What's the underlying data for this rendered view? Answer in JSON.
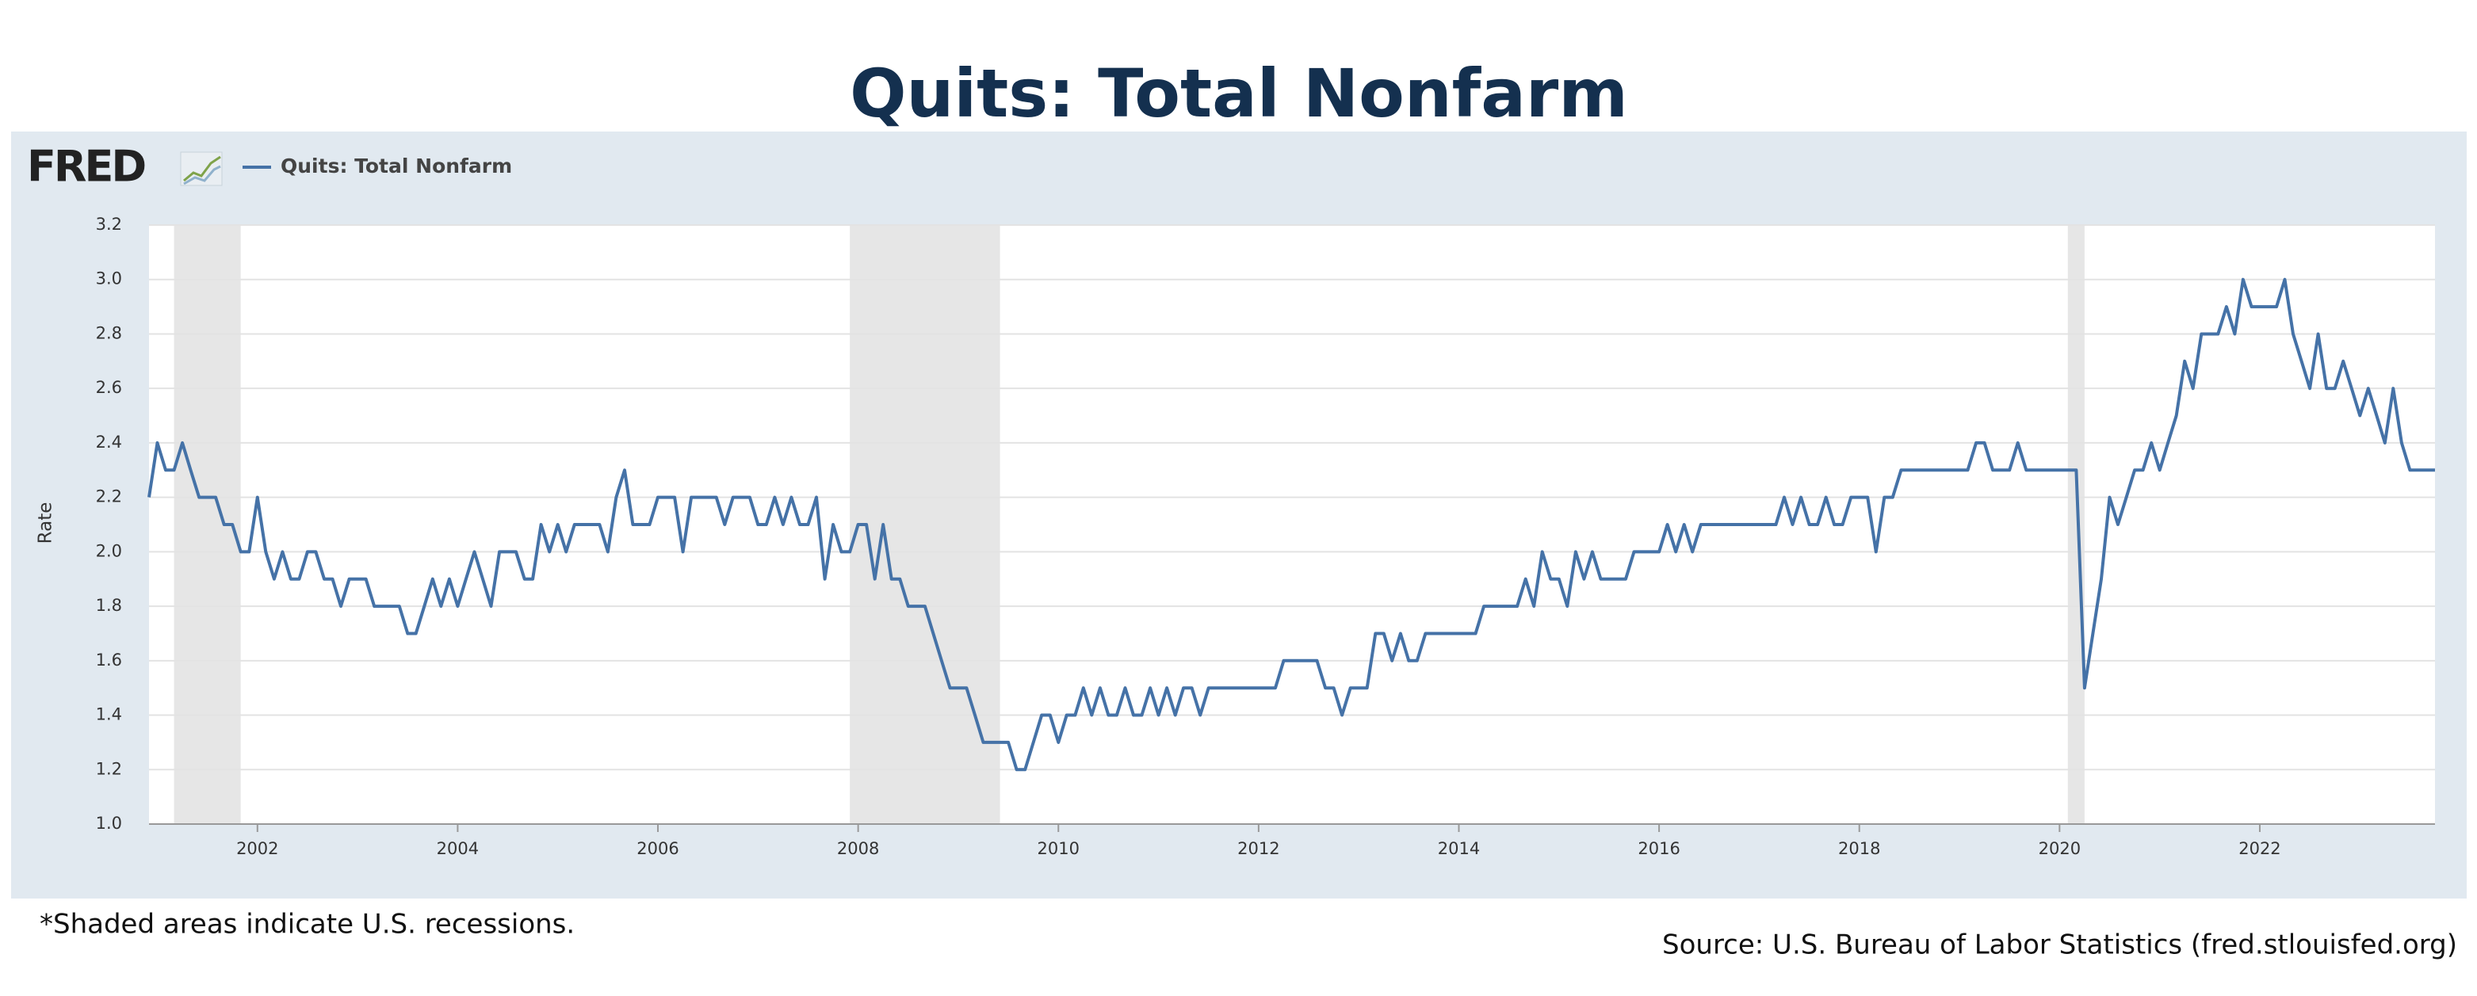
{
  "chart_data": {
    "type": "line",
    "title": "Quits: Total Nonfarm",
    "logo": "FRED",
    "ylabel": "Rate",
    "footnote": "*Shaded areas indicate U.S. recessions.",
    "source": "Source: U.S. Bureau of Labor Statistics (fred.stlouisfed.org)",
    "legend": "top-left",
    "grid": true,
    "xlim": [
      2000.917,
      2023.75
    ],
    "xticks": [
      2002,
      2004,
      2006,
      2008,
      2010,
      2012,
      2014,
      2016,
      2018,
      2020,
      2022
    ],
    "ylim": [
      1,
      3.2
    ],
    "yticks": [
      {
        "value": 1,
        "label": "1.0"
      },
      1.2,
      1.4,
      1.6,
      1.8,
      {
        "value": 2,
        "label": "2.0"
      },
      2.2,
      2.4,
      2.6,
      2.8,
      {
        "value": 3,
        "label": "3.0"
      },
      3.2
    ],
    "recessions": [
      [
        2001.167,
        2001.833
      ],
      [
        2007.917,
        2009.417
      ],
      [
        2020.083,
        2020.25
      ]
    ],
    "recession_color": "#e6e6e6",
    "series": [
      {
        "name": "Quits: Total Nonfarm",
        "color": "#4572a7",
        "x": [
          2000.917,
          2001.0,
          2001.083,
          2001.167,
          2001.25,
          2001.333,
          2001.417,
          2001.5,
          2001.583,
          2001.667,
          2001.75,
          2001.833,
          2001.917,
          2002.0,
          2002.083,
          2002.167,
          2002.25,
          2002.333,
          2002.417,
          2002.5,
          2002.583,
          2002.667,
          2002.75,
          2002.833,
          2002.917,
          2003.0,
          2003.083,
          2003.167,
          2003.25,
          2003.333,
          2003.417,
          2003.5,
          2003.583,
          2003.667,
          2003.75,
          2003.833,
          2003.917,
          2004.0,
          2004.083,
          2004.167,
          2004.25,
          2004.333,
          2004.417,
          2004.5,
          2004.583,
          2004.667,
          2004.75,
          2004.833,
          2004.917,
          2005.0,
          2005.083,
          2005.167,
          2005.25,
          2005.333,
          2005.417,
          2005.5,
          2005.583,
          2005.667,
          2005.75,
          2005.833,
          2005.917,
          2006.0,
          2006.083,
          2006.167,
          2006.25,
          2006.333,
          2006.417,
          2006.5,
          2006.583,
          2006.667,
          2006.75,
          2006.833,
          2006.917,
          2007.0,
          2007.083,
          2007.167,
          2007.25,
          2007.333,
          2007.417,
          2007.5,
          2007.583,
          2007.667,
          2007.75,
          2007.833,
          2007.917,
          2008.0,
          2008.083,
          2008.167,
          2008.25,
          2008.333,
          2008.417,
          2008.5,
          2008.583,
          2008.667,
          2008.75,
          2008.833,
          2008.917,
          2009.0,
          2009.083,
          2009.167,
          2009.25,
          2009.333,
          2009.417,
          2009.5,
          2009.583,
          2009.667,
          2009.75,
          2009.833,
          2009.917,
          2010.0,
          2010.083,
          2010.167,
          2010.25,
          2010.333,
          2010.417,
          2010.5,
          2010.583,
          2010.667,
          2010.75,
          2010.833,
          2010.917,
          2011.0,
          2011.083,
          2011.167,
          2011.25,
          2011.333,
          2011.417,
          2011.5,
          2011.583,
          2011.667,
          2011.75,
          2011.833,
          2011.917,
          2012.0,
          2012.083,
          2012.167,
          2012.25,
          2012.333,
          2012.417,
          2012.5,
          2012.583,
          2012.667,
          2012.75,
          2012.833,
          2012.917,
          2013.0,
          2013.083,
          2013.167,
          2013.25,
          2013.333,
          2013.417,
          2013.5,
          2013.583,
          2013.667,
          2013.75,
          2013.833,
          2013.917,
          2014.0,
          2014.083,
          2014.167,
          2014.25,
          2014.333,
          2014.417,
          2014.5,
          2014.583,
          2014.667,
          2014.75,
          2014.833,
          2014.917,
          2015.0,
          2015.083,
          2015.167,
          2015.25,
          2015.333,
          2015.417,
          2015.5,
          2015.583,
          2015.667,
          2015.75,
          2015.833,
          2015.917,
          2016.0,
          2016.083,
          2016.167,
          2016.25,
          2016.333,
          2016.417,
          2016.5,
          2016.583,
          2016.667,
          2016.75,
          2016.833,
          2016.917,
          2017.0,
          2017.083,
          2017.167,
          2017.25,
          2017.333,
          2017.417,
          2017.5,
          2017.583,
          2017.667,
          2017.75,
          2017.833,
          2017.917,
          2018.0,
          2018.083,
          2018.167,
          2018.25,
          2018.333,
          2018.417,
          2018.5,
          2018.583,
          2018.667,
          2018.75,
          2018.833,
          2018.917,
          2019.0,
          2019.083,
          2019.167,
          2019.25,
          2019.333,
          2019.417,
          2019.5,
          2019.583,
          2019.667,
          2019.75,
          2019.833,
          2019.917,
          2020.0,
          2020.083,
          2020.167,
          2020.25,
          2020.333,
          2020.417,
          2020.5,
          2020.583,
          2020.667,
          2020.75,
          2020.833,
          2020.917,
          2021.0,
          2021.083,
          2021.167,
          2021.25,
          2021.333,
          2021.417,
          2021.5,
          2021.583,
          2021.667,
          2021.75,
          2021.833,
          2021.917,
          2022.0,
          2022.083,
          2022.167,
          2022.25,
          2022.333,
          2022.417,
          2022.5,
          2022.583,
          2022.667,
          2022.75,
          2022.833,
          2022.917,
          2023.0,
          2023.083,
          2023.167,
          2023.25,
          2023.333,
          2023.417,
          2023.5,
          2023.583,
          2023.667,
          2023.75
        ],
        "values": [
          2.2,
          2.4,
          2.3,
          2.3,
          2.4,
          2.3,
          2.2,
          2.2,
          2.2,
          2.1,
          2.1,
          2.0,
          2.0,
          2.2,
          2.0,
          1.9,
          2.0,
          1.9,
          1.9,
          2.0,
          2.0,
          1.9,
          1.9,
          1.8,
          1.9,
          1.9,
          1.9,
          1.8,
          1.8,
          1.8,
          1.8,
          1.7,
          1.7,
          1.8,
          1.9,
          1.8,
          1.9,
          1.8,
          1.9,
          2.0,
          1.9,
          1.8,
          2.0,
          2.0,
          2.0,
          1.9,
          1.9,
          2.1,
          2.0,
          2.1,
          2.0,
          2.1,
          2.1,
          2.1,
          2.1,
          2.0,
          2.2,
          2.3,
          2.1,
          2.1,
          2.1,
          2.2,
          2.2,
          2.2,
          2.0,
          2.2,
          2.2,
          2.2,
          2.2,
          2.1,
          2.2,
          2.2,
          2.2,
          2.1,
          2.1,
          2.2,
          2.1,
          2.2,
          2.1,
          2.1,
          2.2,
          1.9,
          2.1,
          2.0,
          2.0,
          2.1,
          2.1,
          1.9,
          2.1,
          1.9,
          1.9,
          1.8,
          1.8,
          1.8,
          1.7,
          1.6,
          1.5,
          1.5,
          1.5,
          1.4,
          1.3,
          1.3,
          1.3,
          1.3,
          1.2,
          1.2,
          1.3,
          1.4,
          1.4,
          1.3,
          1.4,
          1.4,
          1.5,
          1.4,
          1.5,
          1.4,
          1.4,
          1.5,
          1.4,
          1.4,
          1.5,
          1.4,
          1.5,
          1.4,
          1.5,
          1.5,
          1.4,
          1.5,
          1.5,
          1.5,
          1.5,
          1.5,
          1.5,
          1.5,
          1.5,
          1.5,
          1.6,
          1.6,
          1.6,
          1.6,
          1.6,
          1.5,
          1.5,
          1.4,
          1.5,
          1.5,
          1.5,
          1.7,
          1.7,
          1.6,
          1.7,
          1.6,
          1.6,
          1.7,
          1.7,
          1.7,
          1.7,
          1.7,
          1.7,
          1.7,
          1.8,
          1.8,
          1.8,
          1.8,
          1.8,
          1.9,
          1.8,
          2.0,
          1.9,
          1.9,
          1.8,
          2.0,
          1.9,
          2.0,
          1.9,
          1.9,
          1.9,
          1.9,
          2.0,
          2.0,
          2.0,
          2.0,
          2.1,
          2.0,
          2.1,
          2.0,
          2.1,
          2.1,
          2.1,
          2.1,
          2.1,
          2.1,
          2.1,
          2.1,
          2.1,
          2.1,
          2.2,
          2.1,
          2.2,
          2.1,
          2.1,
          2.2,
          2.1,
          2.1,
          2.2,
          2.2,
          2.2,
          2.0,
          2.2,
          2.2,
          2.3,
          2.3,
          2.3,
          2.3,
          2.3,
          2.3,
          2.3,
          2.3,
          2.3,
          2.4,
          2.4,
          2.3,
          2.3,
          2.3,
          2.4,
          2.3,
          2.3,
          2.3,
          2.3,
          2.3,
          2.3,
          2.3,
          1.5,
          1.7,
          1.9,
          2.2,
          2.1,
          2.2,
          2.3,
          2.3,
          2.4,
          2.3,
          2.4,
          2.5,
          2.7,
          2.6,
          2.8,
          2.8,
          2.8,
          2.9,
          2.8,
          3.0,
          2.9,
          2.9,
          2.9,
          2.9,
          3.0,
          2.8,
          2.7,
          2.6,
          2.8,
          2.6,
          2.6,
          2.7,
          2.6,
          2.5,
          2.6,
          2.5,
          2.4,
          2.6,
          2.4,
          2.3,
          2.3,
          2.3,
          2.3
        ]
      }
    ]
  }
}
